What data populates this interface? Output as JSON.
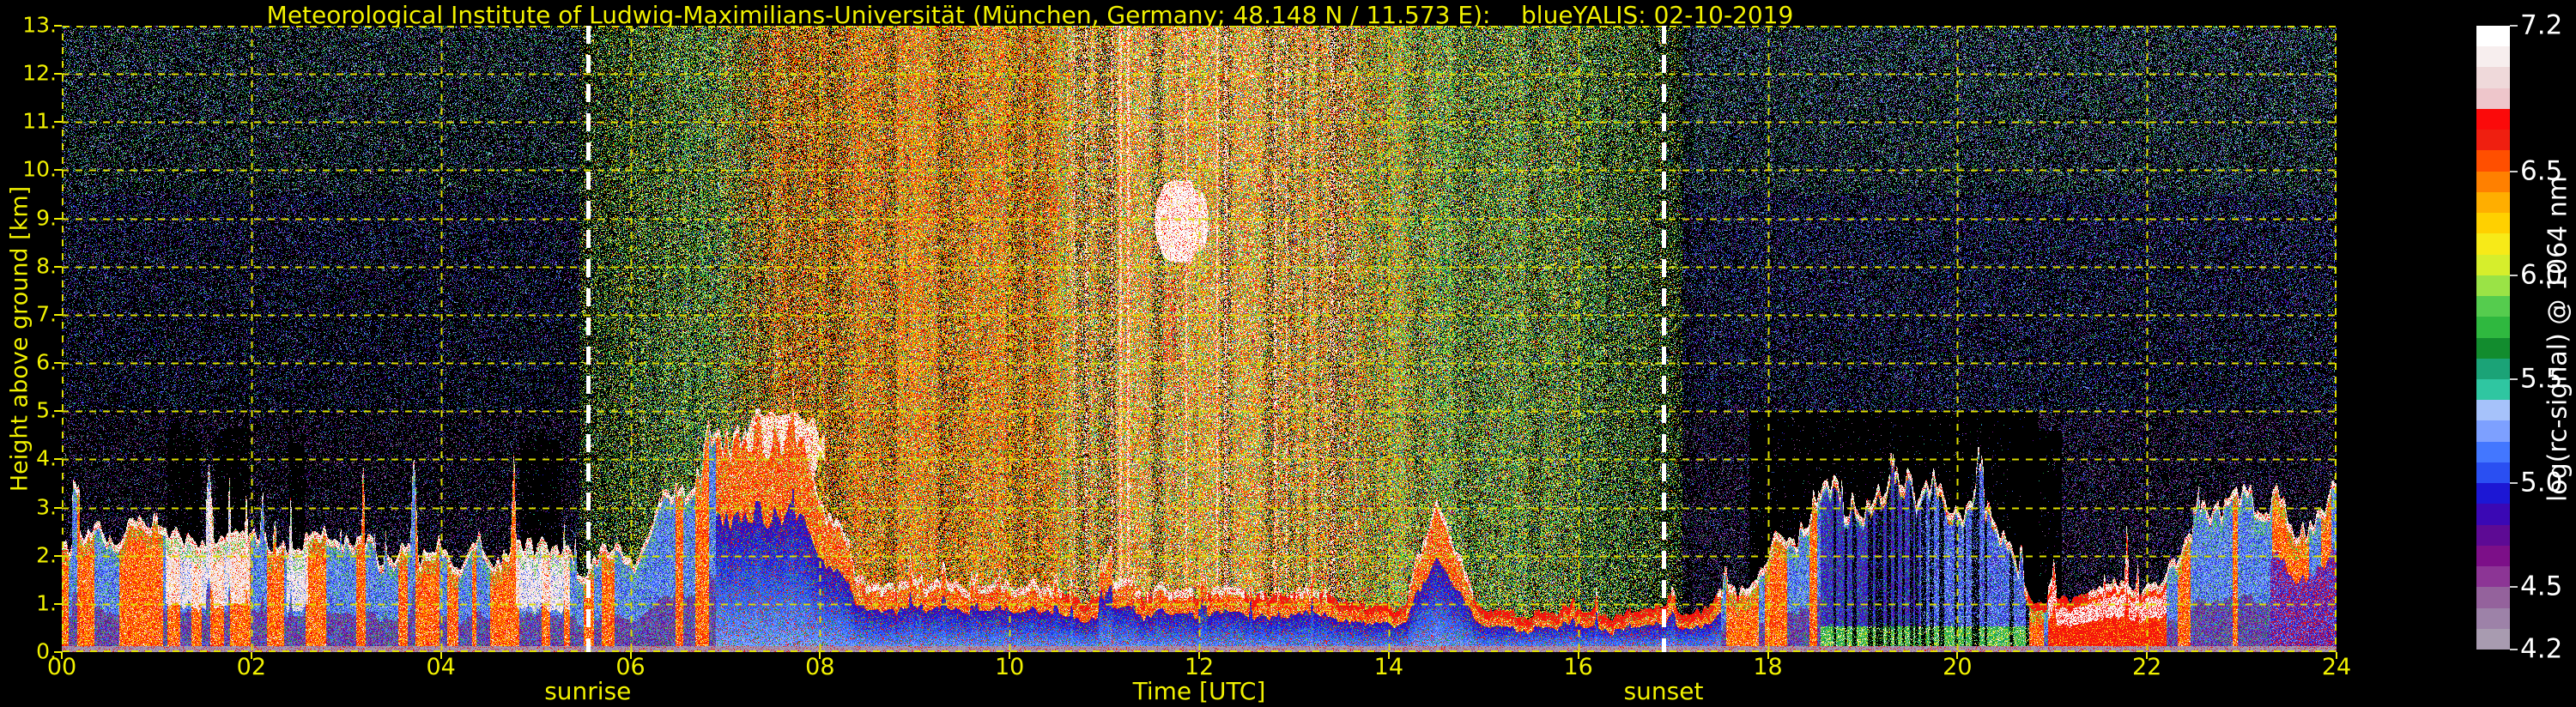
{
  "title": "Meteorological Institute of Ludwig-Maximilians-Universität (München, Germany; 48.148 N / 11.573 E):    blueYALIS: 02-10-2019",
  "chart_data": {
    "type": "heatmap",
    "title": "Meteorological Institute of Ludwig-Maximilians-Universität (München, Germany; 48.148 N / 11.573 E):    blueYALIS: 02-10-2019",
    "station": "Meteorological Institute of Ludwig-Maximilians-Universität",
    "location": "München, Germany; 48.148 N / 11.573 E",
    "instrument": "blueYALIS",
    "date": "02-10-2019",
    "xlabel": "Time [UTC]",
    "ylabel": "Height above ground [km]",
    "x_range_hours": [
      0,
      24
    ],
    "y_range_km": [
      0,
      13
    ],
    "x_ticks": [
      {
        "label": "00",
        "value": 0
      },
      {
        "label": "02",
        "value": 2
      },
      {
        "label": "04",
        "value": 4
      },
      {
        "label": "06",
        "value": 6
      },
      {
        "label": "08",
        "value": 8
      },
      {
        "label": "10",
        "value": 10
      },
      {
        "label": "12",
        "value": 12
      },
      {
        "label": "14",
        "value": 14
      },
      {
        "label": "16",
        "value": 16
      },
      {
        "label": "18",
        "value": 18
      },
      {
        "label": "20",
        "value": 20
      },
      {
        "label": "22",
        "value": 22
      },
      {
        "label": "24",
        "value": 24
      }
    ],
    "y_ticks": [
      {
        "label": "13.",
        "value": 13
      },
      {
        "label": "12.",
        "value": 12
      },
      {
        "label": "11.",
        "value": 11
      },
      {
        "label": "10.",
        "value": 10
      },
      {
        "label": "9.",
        "value": 9
      },
      {
        "label": "8.",
        "value": 8
      },
      {
        "label": "7.",
        "value": 7
      },
      {
        "label": "6.",
        "value": 6
      },
      {
        "label": "5.",
        "value": 5
      },
      {
        "label": "4.",
        "value": 4
      },
      {
        "label": "3.",
        "value": 3
      },
      {
        "label": "2.",
        "value": 2
      },
      {
        "label": "1.",
        "value": 1
      },
      {
        "label": "0.",
        "value": 0
      }
    ],
    "grid": {
      "color": "#dede00",
      "style": "dashed",
      "x_step_hours": 2,
      "y_step_km": 1
    },
    "events": {
      "sunrise": {
        "label": "sunrise",
        "time_utc_hours": 5.55,
        "line_color": "#ffffff",
        "line_style": "dashed"
      },
      "sunset": {
        "label": "sunset",
        "time_utc_hours": 16.9,
        "line_color": "#ffffff",
        "line_style": "dashed"
      }
    },
    "colorbar": {
      "label": "log(rc-signal) @ 1064 nm",
      "range": [
        4.2,
        7.2
      ],
      "ticks": [
        {
          "label": "7.2",
          "value": 7.2
        },
        {
          "label": "6.5",
          "value": 6.5
        },
        {
          "label": "6.0",
          "value": 6.0
        },
        {
          "label": "5.5",
          "value": 5.5
        },
        {
          "label": "5.0",
          "value": 5.0
        },
        {
          "label": "4.5",
          "value": 4.5
        },
        {
          "label": "4.2",
          "value": 4.2
        }
      ],
      "colors_bottom_to_top": [
        "#a89bb0",
        "#9d82a8",
        "#94629c",
        "#8c3595",
        "#7c0f88",
        "#5d0a94",
        "#3a08b4",
        "#1c17d4",
        "#2a4ff2",
        "#4377ff",
        "#7da0ff",
        "#a6c2fa",
        "#2fc6a1",
        "#1ba377",
        "#128c2e",
        "#2fb83f",
        "#55cc4e",
        "#9ae346",
        "#d6ee2c",
        "#f7ea18",
        "#ffd000",
        "#ffae00",
        "#ff8000",
        "#ff4f00",
        "#ef1f10",
        "#fb0a0a",
        "#eec6cb",
        "#efd9da",
        "#f7eeee",
        "#ffffff"
      ]
    },
    "features": {
      "description": "24-h lidar range-corrected-signal quicklook: convective aerosol/cloud boundary layer near the ground (white/red tops over blue-purple interior), bright speckled solar-background noise between the dashed sunrise and sunset lines, a cirrus patch near 9 km around 11:45 UTC, a mid-level cloud near 4.5 km around 07:30 UTC, and black attenuation gaps above opaque clouds after sunset.",
      "daytime_noise": {
        "start_utc": 5.55,
        "end_utc": 16.95
      },
      "bright_noise_columns": {
        "t0": 10.6,
        "t1": 13.65
      },
      "bl_top_profile_t_km": [
        [
          0,
          2.1
        ],
        [
          0.8,
          2.25
        ],
        [
          1.6,
          2.1
        ],
        [
          2.4,
          2.2
        ],
        [
          3.2,
          1.95
        ],
        [
          4,
          1.85
        ],
        [
          4.8,
          2.0
        ],
        [
          5.5,
          1.75
        ],
        [
          6,
          1.8
        ],
        [
          6.5,
          3.2
        ],
        [
          6.9,
          4.2
        ],
        [
          7.3,
          4.6
        ],
        [
          7.7,
          4.2
        ],
        [
          8.1,
          2.6
        ],
        [
          8.4,
          1.5
        ],
        [
          9,
          1.25
        ],
        [
          9.9,
          1.35
        ],
        [
          10.5,
          1.1
        ],
        [
          11.2,
          1.3
        ],
        [
          12,
          1.15
        ],
        [
          12.6,
          1.25
        ],
        [
          13.2,
          1.1
        ],
        [
          13.7,
          0.85
        ],
        [
          14.2,
          1.0
        ],
        [
          14.5,
          3.2
        ],
        [
          14.9,
          1.0
        ],
        [
          15.5,
          0.75
        ],
        [
          16.2,
          0.8
        ],
        [
          16.9,
          0.85
        ],
        [
          17.4,
          0.95
        ],
        [
          17.9,
          1.7
        ],
        [
          18.4,
          2.7
        ],
        [
          18.9,
          3.15
        ],
        [
          19.6,
          3.35
        ],
        [
          20.2,
          3.0
        ],
        [
          20.55,
          2.5
        ],
        [
          20.8,
          1.05
        ],
        [
          21.3,
          1.2
        ],
        [
          21.9,
          1.3
        ],
        [
          22.3,
          1.7
        ],
        [
          22.75,
          2.9
        ],
        [
          23.1,
          2.95
        ],
        [
          23.5,
          2.6
        ],
        [
          24,
          3.0
        ]
      ],
      "clouds": [
        {
          "type": "mid-level cloud",
          "t0": 7.15,
          "t1": 8.05,
          "h0": 3.5,
          "h1": 5.0
        },
        {
          "type": "cirrus",
          "t0": 11.45,
          "t1": 12.2,
          "h0": 7.75,
          "h1": 9.8
        }
      ],
      "dark_zones_above_layer": [
        {
          "t0": 17.8,
          "t1": 20.85,
          "h_max": 5.0
        },
        {
          "t0": 20.55,
          "t1": 21.1,
          "h_max": 4.6
        }
      ]
    }
  }
}
